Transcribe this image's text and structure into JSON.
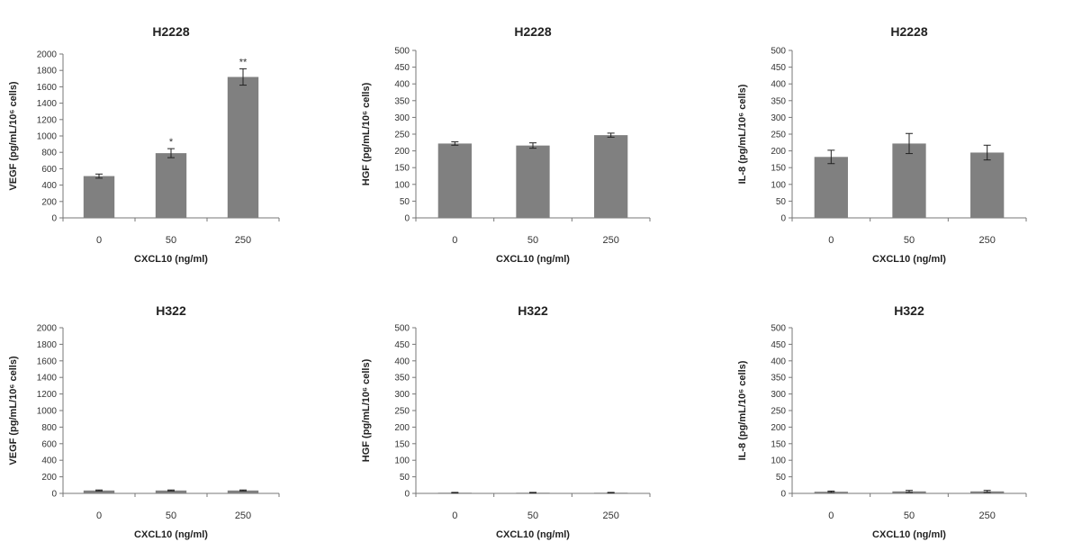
{
  "chart_data": [
    {
      "type": "bar",
      "title": "H2228",
      "xlabel": "CXCL10 (ng/ml)",
      "ylabel": "VEGF (pg/mL/10⁶ cells)",
      "categories": [
        "0",
        "50",
        "250"
      ],
      "values": [
        510,
        790,
        1720
      ],
      "errors": [
        25,
        55,
        100
      ],
      "annotations": [
        "",
        "*",
        "**"
      ],
      "ylim": [
        0,
        2000
      ],
      "yticks": [
        0,
        200,
        400,
        600,
        800,
        1000,
        1200,
        1400,
        1600,
        1800,
        2000
      ]
    },
    {
      "type": "bar",
      "title": "H2228",
      "xlabel": "CXCL10 (ng/ml)",
      "ylabel": "HGF (pg/mL/10⁶ cells)",
      "categories": [
        "0",
        "50",
        "250"
      ],
      "values": [
        222,
        216,
        247
      ],
      "errors": [
        5,
        8,
        6
      ],
      "annotations": [
        "",
        "",
        ""
      ],
      "ylim": [
        0,
        500
      ],
      "yticks": [
        0,
        50,
        100,
        150,
        200,
        250,
        300,
        350,
        400,
        450,
        500
      ]
    },
    {
      "type": "bar",
      "title": "H2228",
      "xlabel": "CXCL10 (ng/ml)",
      "ylabel": "IL-8 (pg/mL/10⁶ cells)",
      "categories": [
        "0",
        "50",
        "250"
      ],
      "values": [
        182,
        222,
        195
      ],
      "errors": [
        20,
        30,
        22
      ],
      "annotations": [
        "",
        "",
        ""
      ],
      "ylim": [
        0,
        500
      ],
      "yticks": [
        0,
        50,
        100,
        150,
        200,
        250,
        300,
        350,
        400,
        450,
        500
      ]
    },
    {
      "type": "bar",
      "title": "H322",
      "xlabel": "CXCL10 (ng/ml)",
      "ylabel": "VEGF (pg/mL/10⁶ cells)",
      "categories": [
        "0",
        "50",
        "250"
      ],
      "values": [
        35,
        35,
        35
      ],
      "errors": [
        6,
        6,
        6
      ],
      "annotations": [
        "",
        "",
        ""
      ],
      "ylim": [
        0,
        2000
      ],
      "yticks": [
        0,
        200,
        400,
        600,
        800,
        1000,
        1200,
        1400,
        1600,
        1800,
        2000
      ]
    },
    {
      "type": "bar",
      "title": "H322",
      "xlabel": "CXCL10 (ng/ml)",
      "ylabel": "HGF (pg/mL/10⁶ cells)",
      "categories": [
        "0",
        "50",
        "250"
      ],
      "values": [
        2,
        2,
        2
      ],
      "errors": [
        1,
        1,
        1
      ],
      "annotations": [
        "",
        "",
        ""
      ],
      "ylim": [
        0,
        500
      ],
      "yticks": [
        0,
        50,
        100,
        150,
        200,
        250,
        300,
        350,
        400,
        450,
        500
      ]
    },
    {
      "type": "bar",
      "title": "H322",
      "xlabel": "CXCL10 (ng/ml)",
      "ylabel": "IL-8 (pg/mL/10⁶ cells)",
      "categories": [
        "0",
        "50",
        "250"
      ],
      "values": [
        5,
        6,
        6
      ],
      "errors": [
        2,
        3,
        3
      ],
      "annotations": [
        "",
        "",
        ""
      ],
      "ylim": [
        0,
        500
      ],
      "yticks": [
        0,
        50,
        100,
        150,
        200,
        250,
        300,
        350,
        400,
        450,
        500
      ]
    }
  ]
}
